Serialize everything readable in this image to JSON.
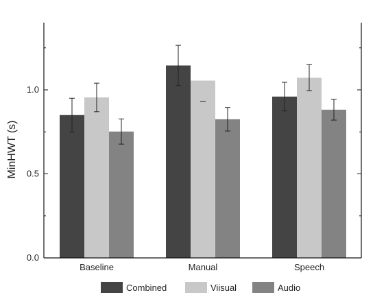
{
  "chart_data": {
    "type": "bar",
    "title": "",
    "xlabel": "",
    "ylabel": "MinHWT (s)",
    "ylim": [
      0.0,
      1.4
    ],
    "yticks": [
      "0.0",
      "0.5",
      "1.0"
    ],
    "categories": [
      "Baseline",
      "Manual",
      "Speech"
    ],
    "series": [
      {
        "name": "Combined",
        "color": "#444444",
        "values": [
          0.85,
          1.145,
          0.96
        ],
        "errors": [
          0.1,
          0.12,
          0.085
        ]
      },
      {
        "name": "Viisual",
        "color": "#c8c8c8",
        "values": [
          0.955,
          1.055,
          1.072
        ],
        "errors": [
          0.085,
          0.0,
          0.078
        ]
      },
      {
        "name": "Audio",
        "color": "#838383",
        "values": [
          0.752,
          0.825,
          0.882
        ],
        "errors": [
          0.075,
          0.07,
          0.062
        ]
      }
    ],
    "grid": false,
    "legend_position": "bottom"
  }
}
